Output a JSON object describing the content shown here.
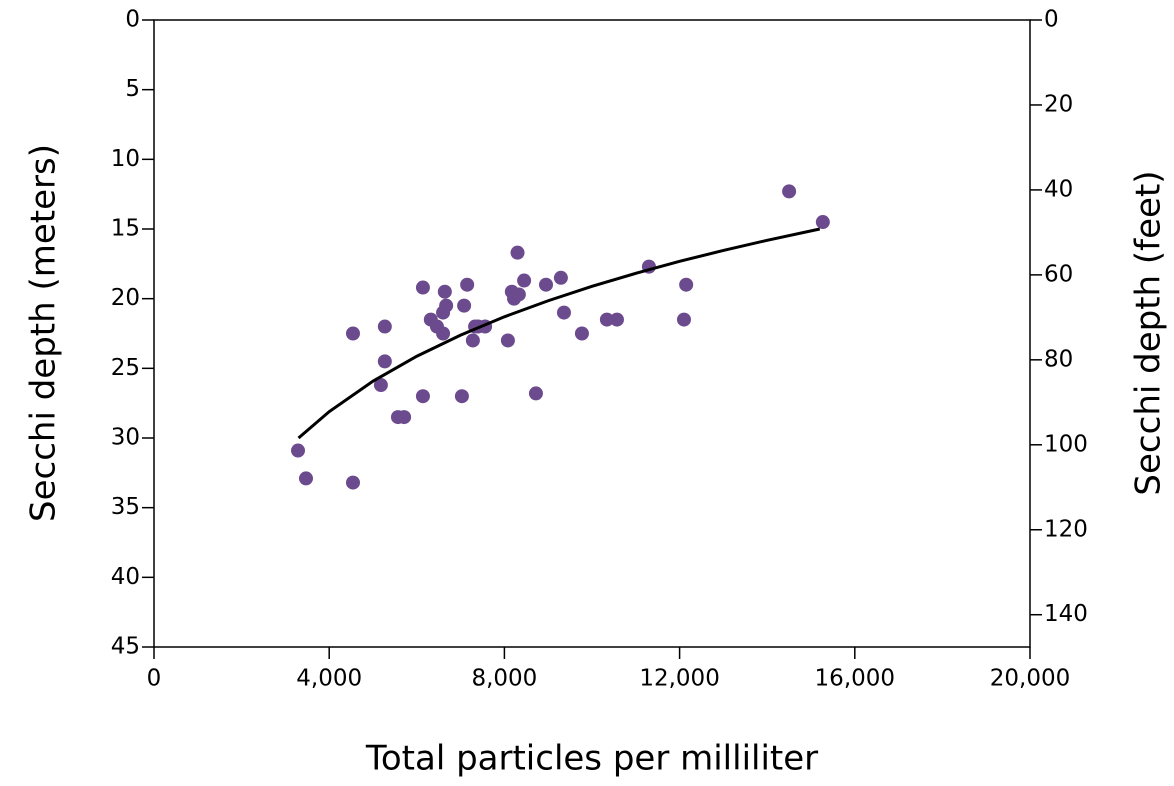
{
  "chart_data": {
    "type": "scatter",
    "x_label": "Total particles per milliliter",
    "y_label": "Secchi depth (meters)",
    "y2_label": "Secchi depth (feet)",
    "xlim": [
      0,
      20000
    ],
    "xticks": [
      0,
      {
        "value": 4000,
        "label": "4,000"
      },
      {
        "value": 8000,
        "label": "8,000"
      },
      {
        "value": 12000,
        "label": "12,000"
      },
      {
        "value": 16000,
        "label": "16,000"
      },
      {
        "value": 20000,
        "label": "20,000"
      }
    ],
    "ylim": [
      0,
      45
    ],
    "y_reversed": true,
    "yticks": [
      0,
      5,
      10,
      15,
      20,
      25,
      30,
      35,
      40,
      45
    ],
    "y2lim": [
      0,
      147.6
    ],
    "y2ticks": [
      0,
      20,
      40,
      60,
      80,
      100,
      120,
      140
    ],
    "series": [
      {
        "kind": "points",
        "color": "#6b4a8e",
        "x": [
          3288,
          3470,
          4543,
          4543,
          5270,
          5270,
          5180,
          5570,
          5710,
          6140,
          6140,
          6320,
          6460,
          6600,
          6600,
          6640,
          6670,
          7030,
          7150,
          7080,
          7280,
          7330,
          7400,
          7560,
          8080,
          8170,
          8220,
          8300,
          8330,
          8450,
          8720,
          8950,
          9290,
          9360,
          9770,
          10340,
          10570,
          11300,
          12100,
          12150,
          14500,
          15270
        ],
        "values": [
          30.9,
          32.9,
          22.5,
          33.2,
          22.0,
          24.5,
          26.2,
          28.5,
          28.5,
          19.2,
          27.0,
          21.5,
          22.0,
          21.0,
          22.5,
          19.5,
          20.5,
          27.0,
          19.0,
          20.5,
          23.0,
          22.0,
          22.0,
          22.0,
          23.0,
          19.5,
          20.0,
          16.7,
          19.7,
          18.7,
          26.8,
          19.0,
          18.5,
          21.0,
          22.5,
          21.5,
          21.5,
          17.7,
          21.5,
          19.0,
          12.3,
          14.5
        ]
      },
      {
        "kind": "line",
        "color": "#000000",
        "x": [
          3300,
          4000,
          5000,
          6000,
          7000,
          8000,
          9000,
          10000,
          11000,
          12000,
          13000,
          14000,
          15200
        ],
        "values": [
          30.0,
          28.11,
          25.92,
          24.13,
          22.62,
          21.3,
          20.15,
          19.11,
          18.18,
          17.32,
          16.54,
          15.81,
          15.0
        ]
      }
    ]
  }
}
